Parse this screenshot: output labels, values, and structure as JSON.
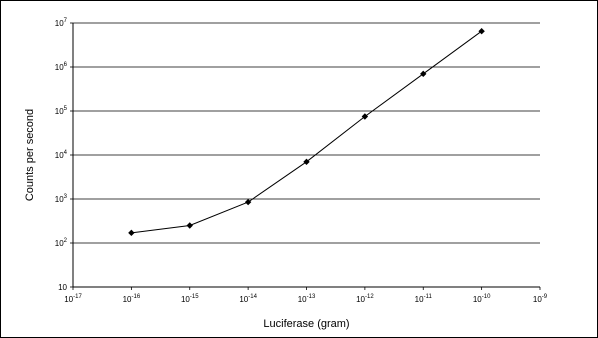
{
  "chart_data": {
    "type": "line",
    "title": "",
    "xlabel": "Luciferase (gram)",
    "ylabel": "Counts per second",
    "x_scale": "log",
    "y_scale": "log",
    "xlim": [
      1e-17,
      1e-09
    ],
    "ylim": [
      10,
      10000000
    ],
    "grid": "horizontal major gridlines",
    "legend": "none",
    "x_ticks": [
      {
        "base": "10",
        "exp": "-17"
      },
      {
        "base": "10",
        "exp": "-16"
      },
      {
        "base": "10",
        "exp": "-15"
      },
      {
        "base": "10",
        "exp": "-14"
      },
      {
        "base": "10",
        "exp": "-13"
      },
      {
        "base": "10",
        "exp": "-12"
      },
      {
        "base": "10",
        "exp": "-11"
      },
      {
        "base": "10",
        "exp": "-10"
      },
      {
        "base": "10",
        "exp": "-9"
      }
    ],
    "y_ticks": [
      {
        "base": "10",
        "exp": ""
      },
      {
        "base": "10",
        "exp": "2"
      },
      {
        "base": "10",
        "exp": "3"
      },
      {
        "base": "10",
        "exp": "4"
      },
      {
        "base": "10",
        "exp": "5"
      },
      {
        "base": "10",
        "exp": "6"
      },
      {
        "base": "10",
        "exp": "7"
      }
    ],
    "series": [
      {
        "x": [
          1e-16,
          1e-15,
          1e-14,
          1e-13,
          1e-12,
          1e-11,
          1e-10
        ],
        "y": [
          170,
          250,
          850,
          7000,
          75000,
          700000,
          6500000
        ],
        "color": "#000000",
        "marker": "diamond"
      }
    ]
  }
}
